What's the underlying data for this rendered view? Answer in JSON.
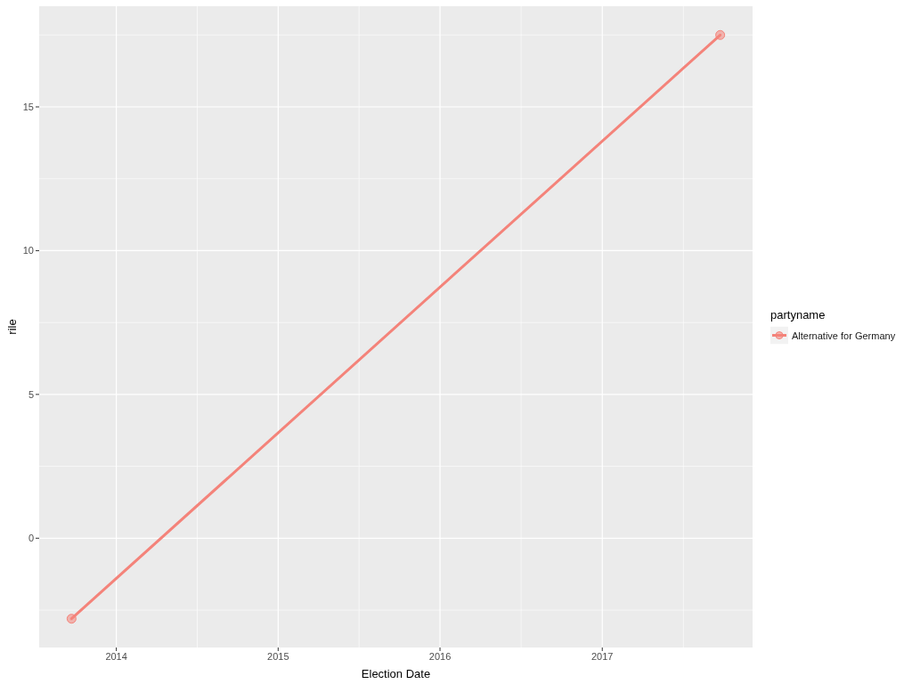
{
  "chart_data": {
    "type": "line",
    "xlabel": "Election Date",
    "ylabel": "rile",
    "legend_title": "partyname",
    "x": [
      "2013-09-22",
      "2017-09-24"
    ],
    "series": [
      {
        "name": "Alternative for Germany",
        "color": "#f4837a",
        "values": [
          -2.8,
          17.5
        ]
      }
    ],
    "xlim": [
      "2013-07-11",
      "2017-12-06"
    ],
    "xticks": [
      "2014",
      "2015",
      "2016",
      "2017"
    ],
    "ylim": [
      -3.8,
      18.5
    ],
    "yticks": [
      0,
      5,
      10,
      15
    ],
    "grid": true,
    "legend": "right",
    "marker": "circle",
    "line_style": "solid"
  }
}
